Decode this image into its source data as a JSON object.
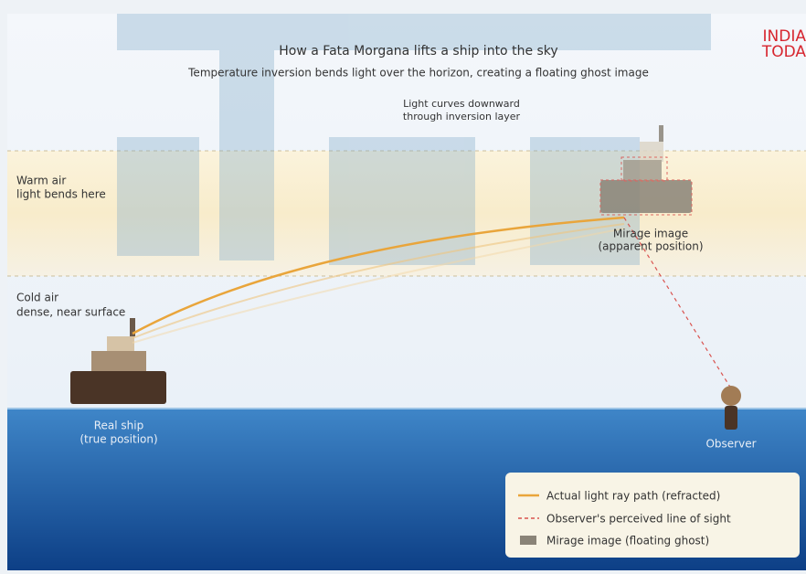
{
  "logo": {
    "line1": "INDIA",
    "line2": "TODA"
  },
  "header": {
    "title": "How a Fata Morgana lifts a ship into the sky",
    "subtitle": "Temperature inversion bends light over the horizon, creating a floating ghost image"
  },
  "annotations": {
    "curve": [
      "Light curves downward",
      "through inversion layer"
    ],
    "warm": [
      "Warm air",
      "light bends here"
    ],
    "cold": [
      "Cold air",
      "dense, near surface"
    ],
    "mirage": [
      "Mirage image",
      "(apparent position)"
    ],
    "ship": [
      "Real ship",
      "(true position)"
    ],
    "observer": "Observer"
  },
  "legend": {
    "items": [
      "Actual light ray path (refracted)",
      "Observer's perceived line of sight",
      "Mirage image (floating ghost)"
    ]
  }
}
